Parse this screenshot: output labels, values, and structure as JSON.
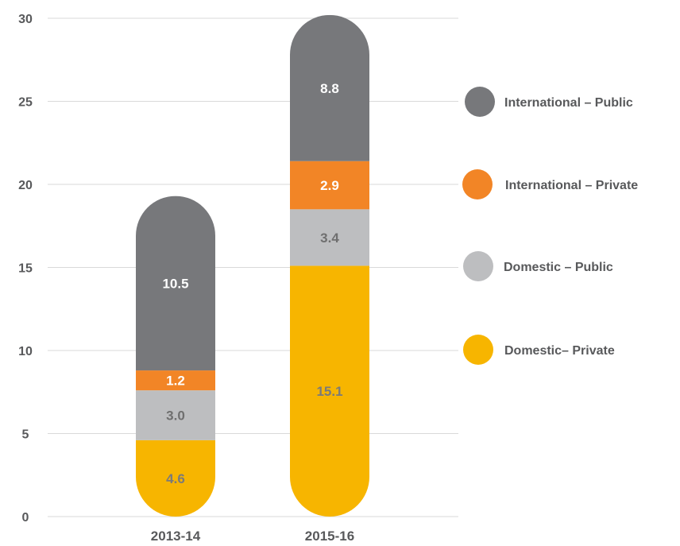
{
  "chart_data": {
    "type": "bar",
    "stacked": true,
    "categories": [
      "2013-14",
      "2015-16"
    ],
    "series": [
      {
        "name": "Domestic– Private",
        "values": [
          4.6,
          15.1
        ],
        "color": "#F7B500",
        "label_color": "#7a7a7a"
      },
      {
        "name": "Domestic – Public",
        "values": [
          3.0,
          3.4
        ],
        "color": "#BDBEC0",
        "label_color": "#6f6f6f"
      },
      {
        "name": "International – Private",
        "values": [
          1.2,
          2.9
        ],
        "color": "#F28526",
        "label_color": "#ffffff"
      },
      {
        "name": "International – Public",
        "values": [
          10.5,
          8.8
        ],
        "color": "#77787B",
        "label_color": "#ffffff"
      }
    ],
    "value_labels": [
      [
        "4.6",
        "3.0",
        "1.2",
        "10.5"
      ],
      [
        "15.1",
        "3.4",
        "2.9",
        "8.8"
      ]
    ],
    "yticks": [
      "0",
      "5",
      "10",
      "15",
      "20",
      "25",
      "30"
    ],
    "ylim": [
      0,
      30
    ],
    "grid": true,
    "legend_position": "right",
    "legend_order": [
      "International – Public",
      "International – Private",
      "Domestic – Public",
      "Domestic– Private"
    ],
    "tick_color": "#58595B",
    "grid_color": "#d9d9d9"
  }
}
